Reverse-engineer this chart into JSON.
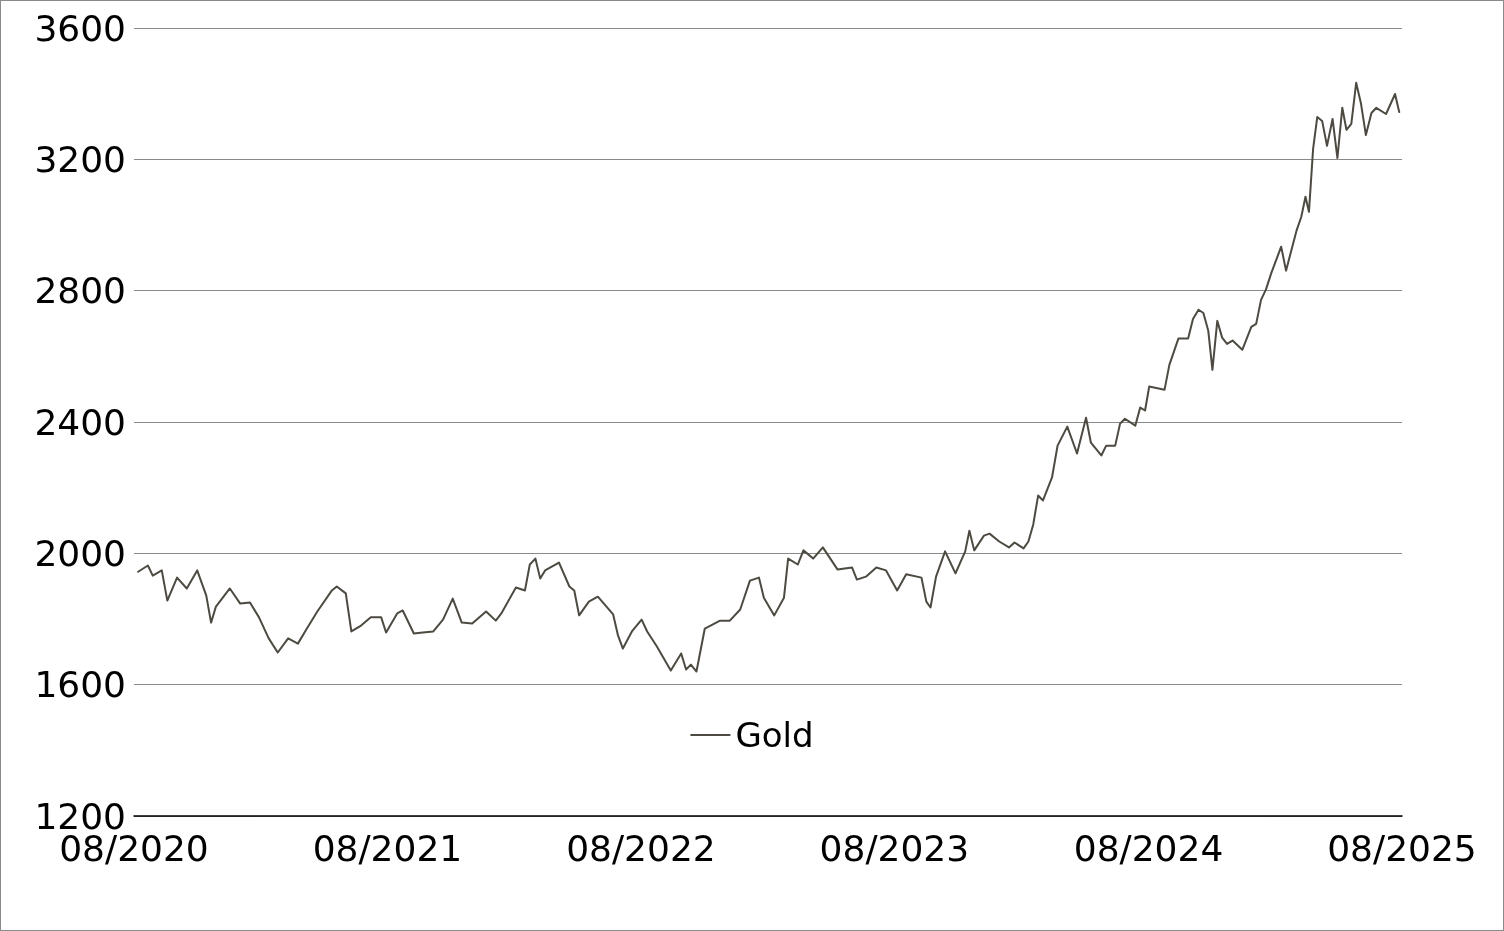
{
  "chart_data": {
    "type": "line",
    "xlim": [
      "2020-08-01",
      "2025-08-01"
    ],
    "xticks": [
      {
        "value": "2020-08-01",
        "label": "08/2020"
      },
      {
        "value": "2021-08-01",
        "label": "08/2021"
      },
      {
        "value": "2022-08-01",
        "label": "08/2022"
      },
      {
        "value": "2023-08-01",
        "label": "08/2023"
      },
      {
        "value": "2024-08-01",
        "label": "08/2024"
      },
      {
        "value": "2025-08-01",
        "label": "08/2025"
      }
    ],
    "ylim": [
      1200,
      3600
    ],
    "yticks": [
      1200,
      1600,
      2000,
      2400,
      2800,
      3200,
      3600
    ],
    "grid": "y",
    "legend": "bottom",
    "marker": "none",
    "line_style": "solid",
    "x": [
      "2020-08-07",
      "2020-08-21",
      "2020-08-28",
      "2020-09-10",
      "2020-09-18",
      "2020-10-02",
      "2020-10-16",
      "2020-10-31",
      "2020-11-13",
      "2020-11-20",
      "2020-11-27",
      "2020-12-17",
      "2021-01-01",
      "2021-01-15",
      "2021-01-28",
      "2021-02-11",
      "2021-02-24",
      "2021-03-11",
      "2021-03-25",
      "2021-04-07",
      "2021-04-22",
      "2021-05-13",
      "2021-05-20",
      "2021-06-02",
      "2021-06-10",
      "2021-06-24",
      "2021-07-08",
      "2021-07-23",
      "2021-07-30",
      "2021-08-15",
      "2021-08-23",
      "2021-09-08",
      "2021-09-21",
      "2021-10-06",
      "2021-10-20",
      "2021-11-03",
      "2021-11-16",
      "2021-12-01",
      "2021-12-21",
      "2022-01-04",
      "2022-01-12",
      "2022-02-02",
      "2022-02-15",
      "2022-02-22",
      "2022-03-02",
      "2022-03-09",
      "2022-03-16",
      "2022-04-05",
      "2022-04-20",
      "2022-04-27",
      "2022-05-04",
      "2022-05-18",
      "2022-05-31",
      "2022-06-22",
      "2022-06-29",
      "2022-07-06",
      "2022-07-19",
      "2022-08-02",
      "2022-08-10",
      "2022-08-24",
      "2022-09-13",
      "2022-09-28",
      "2022-10-05",
      "2022-10-12",
      "2022-10-20",
      "2022-11-01",
      "2022-11-23",
      "2022-12-07",
      "2022-12-22",
      "2023-01-05",
      "2023-01-18",
      "2023-01-25",
      "2023-02-09",
      "2023-02-23",
      "2023-03-01",
      "2023-03-15",
      "2023-03-23",
      "2023-04-06",
      "2023-04-20",
      "2023-05-11",
      "2023-06-01",
      "2023-06-08",
      "2023-06-21",
      "2023-07-06",
      "2023-07-20",
      "2023-08-05",
      "2023-08-18",
      "2023-09-09",
      "2023-09-16",
      "2023-09-22",
      "2023-09-30",
      "2023-10-13",
      "2023-10-28",
      "2023-11-11",
      "2023-11-17",
      "2023-11-24",
      "2023-12-08",
      "2023-12-16",
      "2023-12-30",
      "2024-01-13",
      "2024-01-21",
      "2024-02-03",
      "2024-02-10",
      "2024-02-17",
      "2024-02-24",
      "2024-03-02",
      "2024-03-15",
      "2024-03-23",
      "2024-04-06",
      "2024-04-20",
      "2024-05-03",
      "2024-05-10",
      "2024-05-25",
      "2024-06-01",
      "2024-06-14",
      "2024-06-21",
      "2024-06-28",
      "2024-07-13",
      "2024-07-20",
      "2024-07-27",
      "2024-08-02",
      "2024-08-24",
      "2024-08-31",
      "2024-09-13",
      "2024-09-27",
      "2024-10-04",
      "2024-10-12",
      "2024-10-19",
      "2024-10-26",
      "2024-11-01",
      "2024-11-08",
      "2024-11-15",
      "2024-11-22",
      "2024-11-30",
      "2024-12-14",
      "2024-12-27",
      "2025-01-03",
      "2025-01-10",
      "2025-01-17",
      "2025-01-25",
      "2025-02-08",
      "2025-02-15",
      "2025-03-02",
      "2025-03-09",
      "2025-03-15",
      "2025-03-20",
      "2025-03-26",
      "2025-04-01",
      "2025-04-08",
      "2025-04-15",
      "2025-04-23",
      "2025-04-30",
      "2025-05-07",
      "2025-05-13",
      "2025-05-20",
      "2025-05-27",
      "2025-06-03",
      "2025-06-10",
      "2025-06-18",
      "2025-06-25",
      "2025-07-09",
      "2025-07-22",
      "2025-07-28"
    ],
    "series": [
      {
        "name": "Gold",
        "color": "#4d4a42",
        "values": [
          1944,
          1963,
          1932,
          1948,
          1856,
          1926,
          1893,
          1948,
          1872,
          1789,
          1838,
          1893,
          1847,
          1850,
          1805,
          1741,
          1698,
          1741,
          1725,
          1771,
          1823,
          1887,
          1899,
          1878,
          1762,
          1780,
          1805,
          1805,
          1759,
          1817,
          1826,
          1756,
          1759,
          1762,
          1798,
          1862,
          1789,
          1786,
          1823,
          1795,
          1817,
          1896,
          1887,
          1966,
          1984,
          1923,
          1948,
          1972,
          1899,
          1887,
          1811,
          1853,
          1868,
          1814,
          1750,
          1710,
          1762,
          1798,
          1762,
          1716,
          1643,
          1695,
          1646,
          1661,
          1640,
          1771,
          1795,
          1795,
          1829,
          1917,
          1926,
          1865,
          1811,
          1865,
          1984,
          1966,
          2009,
          1984,
          2018,
          1951,
          1957,
          1920,
          1929,
          1957,
          1948,
          1887,
          1936,
          1926,
          1853,
          1835,
          1929,
          2006,
          1939,
          2006,
          2069,
          2009,
          2054,
          2060,
          2036,
          2018,
          2033,
          2015,
          2036,
          2088,
          2176,
          2161,
          2231,
          2328,
          2386,
          2304,
          2413,
          2337,
          2298,
          2328,
          2328,
          2395,
          2410,
          2389,
          2444,
          2435,
          2508,
          2498,
          2574,
          2654,
          2654,
          2714,
          2742,
          2732,
          2678,
          2559,
          2708,
          2657,
          2638,
          2648,
          2620,
          2690,
          2699,
          2772,
          2803,
          2855,
          2934,
          2861,
          2982,
          3025,
          3086,
          3040,
          3232,
          3329,
          3317,
          3241,
          3323,
          3204,
          3357,
          3290,
          3308,
          3433,
          3369,
          3274,
          3341,
          3357,
          3338,
          3399,
          3344
        ]
      }
    ]
  }
}
